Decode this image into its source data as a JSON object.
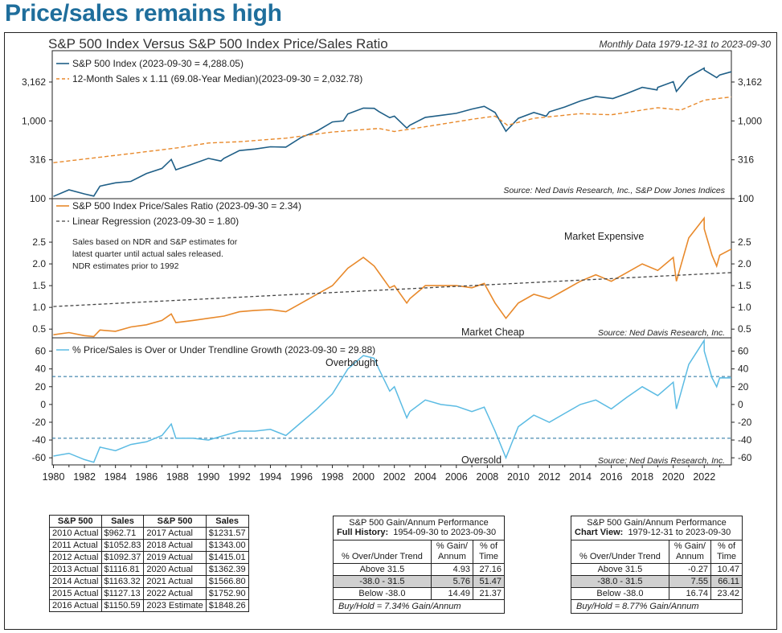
{
  "page_title": "Price/sales remains high",
  "chart_title": "S&P 500 Index Versus S&P 500 Index Price/Sales Ratio",
  "chart_subtitle": "Monthly Data 1979-12-31 to 2023-09-30",
  "colors": {
    "title": "#1f6e9c",
    "spx": "#1f5f87",
    "sales": "#e8892b",
    "ps": "#e8892b",
    "trend": "#444444",
    "dev": "#5bbbe3",
    "dev_band": "#1f6e9c"
  },
  "chart_data": [
    {
      "type": "line",
      "panel": "top",
      "scale": "log",
      "x_range": [
        1979.92,
        2023.75
      ],
      "ylim": [
        100,
        8000
      ],
      "y_ticks": [
        "100",
        "316",
        "1,000",
        "3,162"
      ],
      "y_tick_values": [
        100,
        316,
        1000,
        3162
      ],
      "legend": [
        "S&P 500 Index (2023-09-30 = 4,288.05)",
        "12-Month Sales x 1.11 (69.08-Year Median)(2023-09-30 = 2,032.78)"
      ],
      "source": "Source:  Ned Davis Research, Inc., S&P Dow Jones Indices",
      "series": [
        {
          "name": "S&P 500 Index",
          "style": "solid",
          "x": [
            1980,
            1981,
            1982,
            1982.6,
            1983,
            1984,
            1985,
            1986,
            1987,
            1987.6,
            1987.9,
            1989,
            1990,
            1990.8,
            1991,
            1992,
            1993,
            1994,
            1995,
            1996,
            1997,
            1998,
            1998.7,
            1999,
            2000,
            2000.7,
            2001,
            2001.7,
            2002,
            2002.8,
            2003,
            2004,
            2005,
            2006,
            2007,
            2007.8,
            2008.5,
            2009.2,
            2010,
            2011,
            2011.8,
            2012,
            2013,
            2014,
            2015,
            2016.1,
            2017,
            2018,
            2018.95,
            2019,
            2020,
            2020.2,
            2021,
            2021.99,
            2022,
            2022.8,
            2023,
            2023.75
          ],
          "values": [
            107,
            130,
            115,
            108,
            145,
            160,
            167,
            210,
            245,
            320,
            235,
            280,
            330,
            305,
            330,
            415,
            435,
            465,
            460,
            615,
            740,
            970,
            1000,
            1230,
            1460,
            1450,
            1320,
            1100,
            1150,
            810,
            880,
            1110,
            1180,
            1250,
            1420,
            1540,
            1280,
            735,
            1080,
            1280,
            1150,
            1310,
            1510,
            1800,
            2060,
            1940,
            2250,
            2700,
            2500,
            2700,
            3200,
            2400,
            3700,
            4766,
            4500,
            3600,
            3900,
            4288
          ]
        },
        {
          "name": "12-Month Sales x 1.11",
          "style": "dashed",
          "x": [
            1980,
            1985,
            1988,
            1990,
            1992,
            1995,
            1998,
            2001,
            2002,
            2004,
            2007,
            2008.5,
            2009.3,
            2011,
            2014,
            2016,
            2019,
            2020.5,
            2022,
            2023.75
          ],
          "values": [
            290,
            380,
            450,
            520,
            540,
            600,
            720,
            800,
            730,
            840,
            1050,
            1150,
            880,
            1080,
            1240,
            1200,
            1480,
            1380,
            1850,
            2033
          ]
        }
      ]
    },
    {
      "type": "line",
      "panel": "middle",
      "x_range": [
        1979.92,
        2023.75
      ],
      "ylim": [
        0.3,
        3.5
      ],
      "y_ticks": [
        "0.5",
        "1.0",
        "1.5",
        "2.0",
        "2.5"
      ],
      "y_tick_values": [
        0.5,
        1.0,
        1.5,
        2.0,
        2.5
      ],
      "legend": [
        "S&P 500 Index Price/Sales Ratio (2023-09-30 = 2.34)",
        "Linear Regression (2023-09-30 = 1.80)"
      ],
      "note": [
        "Sales based on NDR and S&P estimates for",
        "latest quarter until actual sales released.",
        "NDR estimates prior to 1992"
      ],
      "annotations": [
        "Market Expensive",
        "Market Cheap"
      ],
      "source": "Source:  Ned Davis Research, Inc.",
      "series": [
        {
          "name": "Price/Sales Ratio",
          "style": "solid",
          "x": [
            1980,
            1981,
            1982,
            1982.6,
            1983,
            1984,
            1985,
            1986,
            1987,
            1987.6,
            1987.9,
            1989,
            1990,
            1991,
            1992,
            1993,
            1994,
            1995,
            1996,
            1997,
            1998,
            1999,
            2000,
            2000.7,
            2001,
            2001.7,
            2002,
            2002.8,
            2003,
            2004,
            2005,
            2006,
            2007,
            2007.8,
            2008.5,
            2009.2,
            2010,
            2011,
            2012,
            2013,
            2014,
            2015,
            2016,
            2017,
            2018,
            2019,
            2020,
            2020.2,
            2021,
            2021.99,
            2022,
            2022.5,
            2022.8,
            2023,
            2023.75
          ],
          "values": [
            0.37,
            0.42,
            0.35,
            0.33,
            0.48,
            0.45,
            0.55,
            0.6,
            0.7,
            0.85,
            0.65,
            0.7,
            0.75,
            0.8,
            0.9,
            0.93,
            0.95,
            0.9,
            1.1,
            1.3,
            1.5,
            1.9,
            2.15,
            1.95,
            1.8,
            1.45,
            1.5,
            1.1,
            1.2,
            1.5,
            1.5,
            1.5,
            1.45,
            1.55,
            1.1,
            0.75,
            1.1,
            1.3,
            1.2,
            1.4,
            1.6,
            1.75,
            1.6,
            1.8,
            2.0,
            1.85,
            2.15,
            1.6,
            2.6,
            3.05,
            2.8,
            2.2,
            1.95,
            2.2,
            2.34
          ]
        },
        {
          "name": "Linear Regression",
          "style": "dashed",
          "x": [
            1980,
            2023.75
          ],
          "values": [
            1.02,
            1.8
          ]
        }
      ]
    },
    {
      "type": "line",
      "panel": "bottom",
      "x_range": [
        1979.92,
        2023.75
      ],
      "ylim": [
        -68,
        75
      ],
      "y_ticks": [
        "-60",
        "-40",
        "-20",
        "0",
        "20",
        "40",
        "60"
      ],
      "y_tick_values": [
        -60,
        -40,
        -20,
        0,
        20,
        40,
        60
      ],
      "reference_lines": [
        31.5,
        -38.0
      ],
      "legend": [
        "% Price/Sales is Over or Under Trendline Growth (2023-09-30 = 29.88)"
      ],
      "annotations": [
        "Overbought",
        "Oversold"
      ],
      "source": "Source:  Ned Davis Research, Inc.",
      "x_tick_labels": [
        "1980",
        "1982",
        "1984",
        "1986",
        "1988",
        "1990",
        "1992",
        "1994",
        "1996",
        "1998",
        "2000",
        "2002",
        "2004",
        "2006",
        "2008",
        "2010",
        "2012",
        "2014",
        "2016",
        "2018",
        "2020",
        "2022"
      ],
      "series": [
        {
          "name": "% Over/Under Trend",
          "style": "solid",
          "x": [
            1980,
            1981,
            1982,
            1982.6,
            1983,
            1984,
            1985,
            1986,
            1987,
            1987.6,
            1987.9,
            1989,
            1990,
            1991,
            1992,
            1993,
            1994,
            1995,
            1996,
            1997,
            1998,
            1999,
            2000,
            2000.7,
            2001,
            2001.7,
            2002,
            2002.8,
            2003,
            2004,
            2005,
            2006,
            2007,
            2007.8,
            2008.5,
            2009.2,
            2010,
            2011,
            2012,
            2013,
            2014,
            2015,
            2016,
            2017,
            2018,
            2019,
            2020,
            2020.2,
            2021,
            2021.99,
            2022,
            2022.5,
            2022.8,
            2023,
            2023.75
          ],
          "values": [
            -58,
            -55,
            -62,
            -65,
            -48,
            -52,
            -45,
            -42,
            -35,
            -22,
            -38,
            -38,
            -40,
            -35,
            -30,
            -30,
            -28,
            -35,
            -20,
            -5,
            12,
            40,
            55,
            52,
            40,
            15,
            20,
            -15,
            -8,
            5,
            0,
            -2,
            -8,
            -3,
            -30,
            -60,
            -25,
            -12,
            -20,
            -10,
            0,
            5,
            -5,
            8,
            20,
            10,
            25,
            -5,
            45,
            72,
            60,
            30,
            20,
            30,
            29.88
          ]
        }
      ]
    }
  ],
  "sales_table": {
    "headers": [
      "S&P 500",
      "Sales",
      "S&P 500",
      "Sales"
    ],
    "rows": [
      [
        "2010 Actual",
        "$962.71",
        "2017 Actual",
        "$1231.57"
      ],
      [
        "2011 Actual",
        "$1052.83",
        "2018 Actual",
        "$1343.00"
      ],
      [
        "2012 Actual",
        "$1092.37",
        "2019 Actual",
        "$1415.01"
      ],
      [
        "2013 Actual",
        "$1116.81",
        "2020 Actual",
        "$1362.39"
      ],
      [
        "2014 Actual",
        "$1163.32",
        "2021 Actual",
        "$1566.80"
      ],
      [
        "2015 Actual",
        "$1127.13",
        "2022 Actual",
        "$1752.90"
      ],
      [
        "2016 Actual",
        "$1150.59",
        "2023 Estimate",
        "$1848.26"
      ]
    ]
  },
  "perf_full": {
    "title": "S&P 500 Gain/Annum Performance",
    "sub_label": "Full History:",
    "sub_range": "1954-09-30 to 2023-09-30",
    "col1": "% Over/Under Trend",
    "col2a": "% Gain/",
    "col2b": "Annum",
    "col3a": "% of",
    "col3b": "Time",
    "rows": [
      [
        "Above 31.5",
        "4.93",
        "27.16"
      ],
      [
        "-38.0 - 31.5",
        "5.76",
        "51.47"
      ],
      [
        "Below -38.0",
        "14.49",
        "21.37"
      ]
    ],
    "footer": "Buy/Hold = 7.34% Gain/Annum"
  },
  "perf_view": {
    "title": "S&P 500 Gain/Annum Performance",
    "sub_label": "Chart View:",
    "sub_range": "1979-12-31 to 2023-09-30",
    "col1": "% Over/Under Trend",
    "col2a": "% Gain/",
    "col2b": "Annum",
    "col3a": "% of",
    "col3b": "Time",
    "rows": [
      [
        "Above 31.5",
        "-0.27",
        "10.47"
      ],
      [
        "-38.0 - 31.5",
        "7.55",
        "66.11"
      ],
      [
        "Below -38.0",
        "16.74",
        "23.42"
      ]
    ],
    "footer": "Buy/Hold = 8.77% Gain/Annum"
  }
}
